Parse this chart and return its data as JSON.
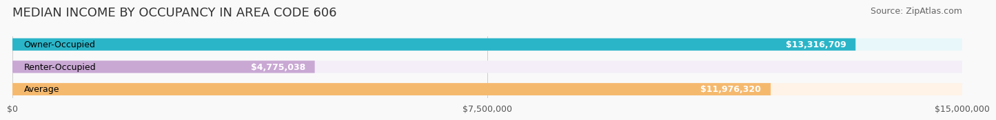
{
  "title": "MEDIAN INCOME BY OCCUPANCY IN AREA CODE 606",
  "source": "Source: ZipAtlas.com",
  "categories": [
    "Owner-Occupied",
    "Renter-Occupied",
    "Average"
  ],
  "values": [
    13316709,
    4775038,
    11976320
  ],
  "labels": [
    "$13,316,709",
    "$4,775,038",
    "$11,976,320"
  ],
  "bar_colors": [
    "#2bb5c8",
    "#c9a8d4",
    "#f5b96e"
  ],
  "bar_bg_colors": [
    "#e8f8fa",
    "#f3eef7",
    "#fef3e6"
  ],
  "xlim": [
    0,
    15000000
  ],
  "xticks": [
    0,
    7500000,
    15000000
  ],
  "xticklabels": [
    "$0",
    "$7,500,000",
    "$15,000,000"
  ],
  "title_fontsize": 13,
  "source_fontsize": 9,
  "label_fontsize": 9,
  "cat_fontsize": 9,
  "background_color": "#f9f9f9"
}
